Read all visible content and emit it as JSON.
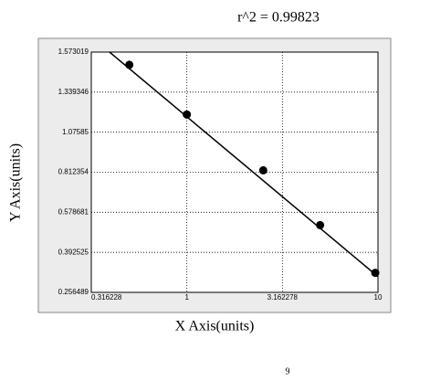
{
  "chart_data": {
    "type": "scatter",
    "title": "r^2 = 0.99823",
    "x_label": "X Axis(units)",
    "y_label": "Y Axis(units)",
    "x_scale": "log",
    "xlim": [
      0.316228,
      10
    ],
    "xticks": [
      0.316228,
      1,
      3.162278,
      10
    ],
    "ylim": [
      0.256489,
      1.573019
    ],
    "yticks": [
      0.256489,
      0.392525,
      0.578681,
      0.812354,
      1.07585,
      1.339346,
      1.573019
    ],
    "grid": true,
    "series": [
      {
        "mode": "markers",
        "color": "#000000",
        "x": [
          0.5,
          1,
          2.51,
          4.98,
          9.68
        ],
        "values": [
          1.499,
          1.192,
          0.825,
          0.519,
          0.323
        ]
      },
      {
        "mode": "line",
        "color": "#000000",
        "x": [
          0.394,
          10
        ],
        "values": [
          1.573019,
          0.31
        ]
      }
    ]
  },
  "page_number": "9"
}
